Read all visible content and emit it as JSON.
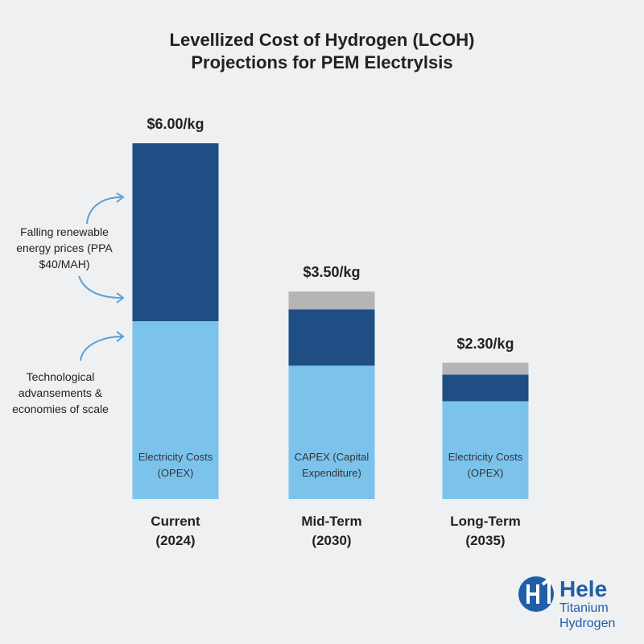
{
  "chart_data": {
    "type": "stacked-bar",
    "title": "Levellized Cost of Hydrogen (LCOH) Projections for PEM Electrylsis",
    "categories": [
      "Current (2024)",
      "Mid-Term (2030)",
      "Long-Term (2035)"
    ],
    "series": [
      {
        "color": "#7cc3ec",
        "values": [
          3.0,
          2.25,
          1.65
        ]
      },
      {
        "color": "#1f4e85",
        "values": [
          3.0,
          0.95,
          0.45
        ]
      },
      {
        "color": "#b5b5b5",
        "values": [
          0,
          0.3,
          0.2
        ]
      }
    ],
    "totals": [
      6.0,
      3.5,
      2.3
    ],
    "total_labels": [
      "$6.00/kg",
      "$3.50/kg",
      "$2.30/kg"
    ],
    "bar_labels": [
      "Electricity Costs (OPEX)",
      "CAPEX (Capital Expenditure)",
      "Electricity Costs (OPEX)"
    ],
    "side_notes": [
      "Falling renewable energy prices (PPA $40/MAH)",
      "Technological advansements & economies of scale"
    ]
  },
  "logo": {
    "name": "Hele",
    "line2": "Titanium",
    "line3": "Hydrogen"
  }
}
